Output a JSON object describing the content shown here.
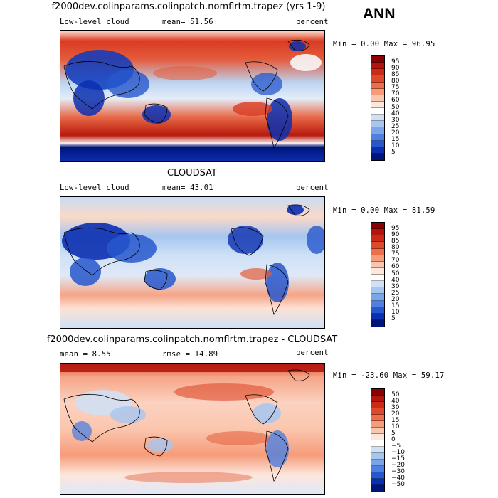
{
  "season": "ANN",
  "panels": [
    {
      "title": "f2000dev.colinparams.colinpatch.nomflrtm.trapez (yrs 1-9)",
      "left_label": "Low-level cloud",
      "mid_label": "mean=  51.56",
      "units": "percent",
      "minmax": "Min =    0.00 Max =  96.95",
      "levels": [
        "95",
        "90",
        "85",
        "80",
        "75",
        "70",
        "60",
        "50",
        "40",
        "30",
        "25",
        "20",
        "15",
        "10",
        "5"
      ],
      "swatch_colors": [
        "#8b0000",
        "#b2150c",
        "#cc2a17",
        "#dd4a2a",
        "#ec6f4c",
        "#f59c7a",
        "#fbc6ae",
        "#fde6dc",
        "#ffffff",
        "#cfe1f7",
        "#a6c6f0",
        "#7aa5e8",
        "#4f80df",
        "#2757cc",
        "#0b2fb0",
        "#00157a"
      ]
    },
    {
      "title": "CLOUDSAT",
      "left_label": "Low-level cloud",
      "mid_label": "mean=  43.01",
      "units": "percent",
      "minmax": "Min =    0.00 Max =  81.59",
      "levels": [
        "95",
        "90",
        "85",
        "80",
        "75",
        "70",
        "60",
        "50",
        "40",
        "30",
        "25",
        "20",
        "15",
        "10",
        "5"
      ],
      "swatch_colors": [
        "#8b0000",
        "#b2150c",
        "#cc2a17",
        "#dd4a2a",
        "#ec6f4c",
        "#f59c7a",
        "#fbc6ae",
        "#fde6dc",
        "#ffffff",
        "#cfe1f7",
        "#a6c6f0",
        "#7aa5e8",
        "#4f80df",
        "#2757cc",
        "#0b2fb0",
        "#00157a"
      ]
    },
    {
      "title": "f2000dev.colinparams.colinpatch.nomflrtm.trapez - CLOUDSAT",
      "left_label": "mean =   8.55",
      "mid_label": "rmse =  14.89",
      "units": "percent",
      "minmax": "Min = -23.60 Max =  59.17",
      "levels": [
        "50",
        "40",
        "30",
        "20",
        "15",
        "10",
        "5",
        "0",
        "−5",
        "−10",
        "−15",
        "−20",
        "−30",
        "−40",
        "−50"
      ],
      "swatch_colors": [
        "#8b0000",
        "#b2150c",
        "#cc2a17",
        "#dd4a2a",
        "#ec6f4c",
        "#f59c7a",
        "#fbc6ae",
        "#fde6dc",
        "#ffffff",
        "#cfe1f7",
        "#a6c6f0",
        "#7aa5e8",
        "#4f80df",
        "#2757cc",
        "#0b2fb0",
        "#00157a"
      ]
    }
  ]
}
